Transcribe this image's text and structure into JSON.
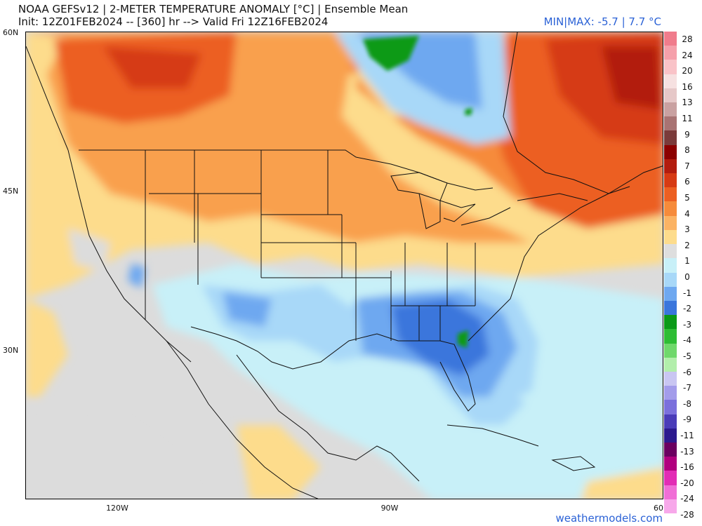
{
  "header": {
    "title_line1": "NOAA GEFSv12 | 2-METER TEMPERATURE ANOMALY [°C] | Ensemble Mean",
    "title_line2": "Init: 12Z01FEB2024 -- [360] hr --> Valid Fri 12Z16FEB2024",
    "minmax": "MIN|MAX: -5.7 | 7.7 °C"
  },
  "axes": {
    "lat_labels": [
      "60N",
      "45N",
      "30N"
    ],
    "lon_labels": [
      "120W",
      "90W",
      "60"
    ]
  },
  "colorbar": {
    "labels": [
      "28",
      "24",
      "20",
      "16",
      "13",
      "11",
      "9",
      "8",
      "7",
      "6",
      "5",
      "4",
      "3",
      "2",
      "1",
      "0",
      "-1",
      "-2",
      "-3",
      "-4",
      "-5",
      "-6",
      "-7",
      "-8",
      "-9",
      "-11",
      "-13",
      "-16",
      "-20",
      "-24",
      "-28"
    ],
    "colors": [
      "#f07c8c",
      "#f5a0ab",
      "#f9c3c8",
      "#f6e1e1",
      "#e6c8c8",
      "#c9a1a1",
      "#a87373",
      "#7a3b3b",
      "#8b0000",
      "#b21c0e",
      "#d63a14",
      "#ec5f22",
      "#f68b3b",
      "#fbb364",
      "#fddc8c",
      "#dedede",
      "#c8f0f8",
      "#a8d8f8",
      "#6ea8f0",
      "#3a76dc",
      "#0a9a18",
      "#2ebd34",
      "#6fd86b",
      "#b2eeab",
      "#c9c6f2",
      "#a39cea",
      "#7b70dc",
      "#4a3cb8",
      "#2c1a8e",
      "#6b0060",
      "#b0007e",
      "#e22cb5",
      "#f06ed6",
      "#f7a8ea"
    ]
  },
  "credit": "weathermodels.com"
}
